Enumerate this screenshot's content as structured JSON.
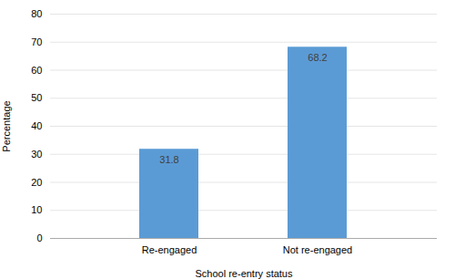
{
  "chart_data": {
    "type": "bar",
    "categories": [
      "Re-engaged",
      "Not re-engaged"
    ],
    "values": [
      31.8,
      68.2
    ],
    "color": "#5B9BD5",
    "xlabel": "School re-entry status",
    "ylabel": "Percentage",
    "ylim": [
      0,
      80
    ],
    "yticks": [
      0,
      10,
      20,
      30,
      40,
      50,
      60,
      70,
      80
    ],
    "grid": true,
    "data_labels": true
  }
}
